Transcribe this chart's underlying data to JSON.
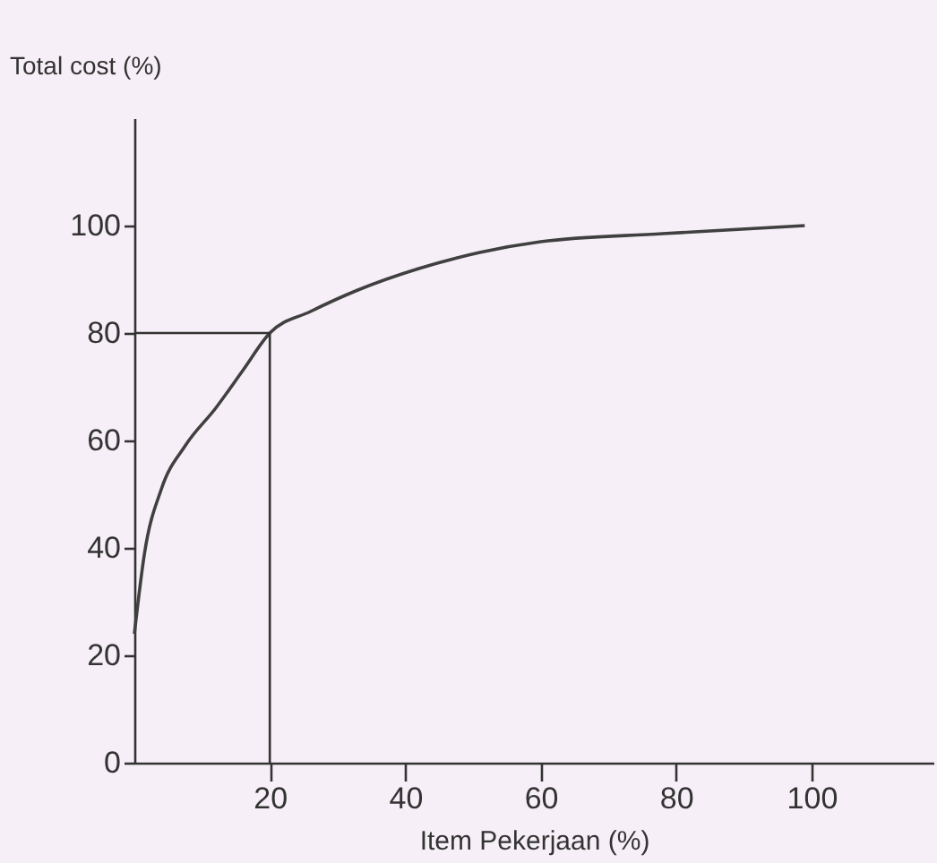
{
  "chart_data": {
    "type": "line",
    "ylabel": "Total cost (%)",
    "xlabel": "Item Pekerjaan (%)",
    "x": [
      0,
      1.5,
      4,
      7.5,
      12,
      16,
      20,
      26,
      33,
      42,
      51,
      60,
      78,
      99
    ],
    "series": [
      {
        "color": "#404040",
        "values": [
          24,
          39,
          51,
          59,
          66,
          73,
          80,
          84,
          88,
          92,
          95,
          97,
          98.5,
          100
        ]
      }
    ],
    "xlim": [
      0,
      118
    ],
    "ylim": [
      0,
      120
    ],
    "xticks": [
      20,
      40,
      60,
      80,
      100
    ],
    "yticks": [
      0,
      20,
      40,
      60,
      80,
      100
    ],
    "ref_lines": [
      {
        "axis": "y",
        "value": 80
      },
      {
        "axis": "x",
        "value": 20
      }
    ],
    "grid": false,
    "marker": "none",
    "line_style": "solid"
  }
}
